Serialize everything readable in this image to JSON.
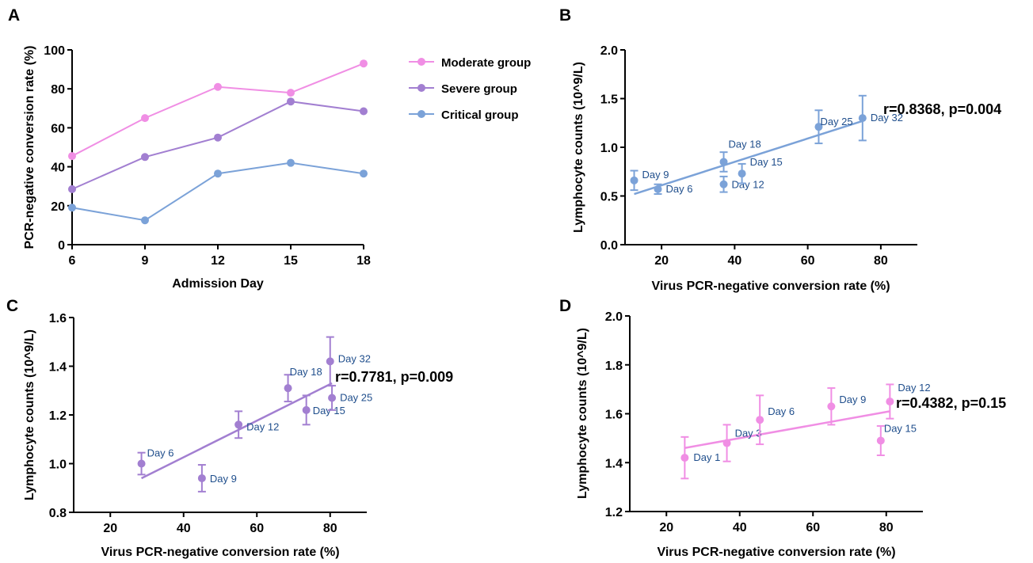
{
  "chart_data": [
    {
      "panel": "A",
      "type": "line",
      "xlabel": "Admission Day",
      "ylabel": "PCR-negative conversion rate (%)",
      "xlim": [
        6,
        18
      ],
      "ylim": [
        0,
        100
      ],
      "xticks": [
        6,
        9,
        12,
        15,
        18
      ],
      "yticks": [
        0,
        20,
        40,
        60,
        80,
        100
      ],
      "x": [
        6,
        9,
        12,
        15,
        18
      ],
      "legend_position": "right",
      "series": [
        {
          "name": "Moderate group",
          "color": "#f08ee4",
          "values": [
            45.5,
            65,
            81,
            78,
            93
          ]
        },
        {
          "name": "Severe group",
          "color": "#a27fd1",
          "values": [
            28.5,
            45,
            55,
            73.5,
            68.5
          ]
        },
        {
          "name": "Critical group",
          "color": "#7ba2d8",
          "values": [
            19,
            12.5,
            36.5,
            42,
            36.5
          ]
        }
      ]
    },
    {
      "panel": "B",
      "type": "scatter",
      "xlabel": "Virus PCR-negative conversion rate (%)",
      "ylabel": "Lymphocyte counts (10^9/L)",
      "xlim": [
        10,
        90
      ],
      "ylim": [
        0,
        2
      ],
      "xticks": [
        20,
        40,
        60,
        80
      ],
      "yticks": [
        "0.0",
        "0.5",
        "1.0",
        "1.5",
        "2.0"
      ],
      "color": "#7ba2d8",
      "annotation": "r=0.8368, p=0.004",
      "points": [
        {
          "label": "Day 6",
          "x": 19,
          "y": 0.57,
          "err": 0.05
        },
        {
          "label": "Day 9",
          "x": 12.5,
          "y": 0.66,
          "err": 0.1
        },
        {
          "label": "Day 12",
          "x": 37,
          "y": 0.62,
          "err": 0.08
        },
        {
          "label": "Day 15",
          "x": 42,
          "y": 0.73,
          "err": 0.1
        },
        {
          "label": "Day 18",
          "x": 37,
          "y": 0.85,
          "err": 0.1
        },
        {
          "label": "Day 25",
          "x": 63,
          "y": 1.21,
          "err": 0.17
        },
        {
          "label": "Day 32",
          "x": 75,
          "y": 1.3,
          "err": 0.23
        }
      ],
      "fit": {
        "x": [
          12.5,
          75
        ],
        "y": [
          0.52,
          1.27
        ]
      }
    },
    {
      "panel": "C",
      "type": "scatter",
      "xlabel": "Virus PCR-negative conversion rate (%)",
      "ylabel": "Lymphocyte counts (10^9/L)",
      "xlim": [
        10,
        90
      ],
      "ylim": [
        0.8,
        1.6
      ],
      "xticks": [
        20,
        40,
        60,
        80
      ],
      "yticks": [
        "0.8",
        "1.0",
        "1.2",
        "1.4",
        "1.6"
      ],
      "color": "#a27fd1",
      "annotation": "r=0.7781, p=0.009",
      "points": [
        {
          "label": "Day 6",
          "x": 28.5,
          "y": 1.0,
          "err": 0.045
        },
        {
          "label": "Day 9",
          "x": 45,
          "y": 0.94,
          "err": 0.055
        },
        {
          "label": "Day 12",
          "x": 55,
          "y": 1.16,
          "err": 0.055
        },
        {
          "label": "Day 15",
          "x": 73.5,
          "y": 1.22,
          "err": 0.06
        },
        {
          "label": "Day 18",
          "x": 68.5,
          "y": 1.31,
          "err": 0.055
        },
        {
          "label": "Day 25",
          "x": 80.5,
          "y": 1.27,
          "err": 0.05
        },
        {
          "label": "Day 32",
          "x": 80,
          "y": 1.42,
          "err": 0.1
        }
      ],
      "fit": {
        "x": [
          28.5,
          80.5
        ],
        "y": [
          0.94,
          1.33
        ]
      }
    },
    {
      "panel": "D",
      "type": "scatter",
      "xlabel": "Virus PCR-negative conversion rate (%)",
      "ylabel": "Lymphocyte counts (10^9/L)",
      "xlim": [
        10,
        90
      ],
      "ylim": [
        1.2,
        2.0
      ],
      "xticks": [
        20,
        40,
        60,
        80
      ],
      "yticks": [
        "1.2",
        "1.4",
        "1.6",
        "1.8",
        "2.0"
      ],
      "color": "#f08ee4",
      "annotation": "r=0.4382, p=0.15",
      "points": [
        {
          "label": "Day 1",
          "x": 25,
          "y": 1.42,
          "err": 0.085
        },
        {
          "label": "Day 3",
          "x": 36.5,
          "y": 1.48,
          "err": 0.075
        },
        {
          "label": "Day 6",
          "x": 45.5,
          "y": 1.575,
          "err": 0.1
        },
        {
          "label": "Day 9",
          "x": 65,
          "y": 1.63,
          "err": 0.075
        },
        {
          "label": "Day 12",
          "x": 81,
          "y": 1.65,
          "err": 0.07
        },
        {
          "label": "Day 15",
          "x": 78.5,
          "y": 1.49,
          "err": 0.06
        }
      ],
      "fit": {
        "x": [
          25,
          81
        ],
        "y": [
          1.46,
          1.61
        ]
      }
    }
  ]
}
